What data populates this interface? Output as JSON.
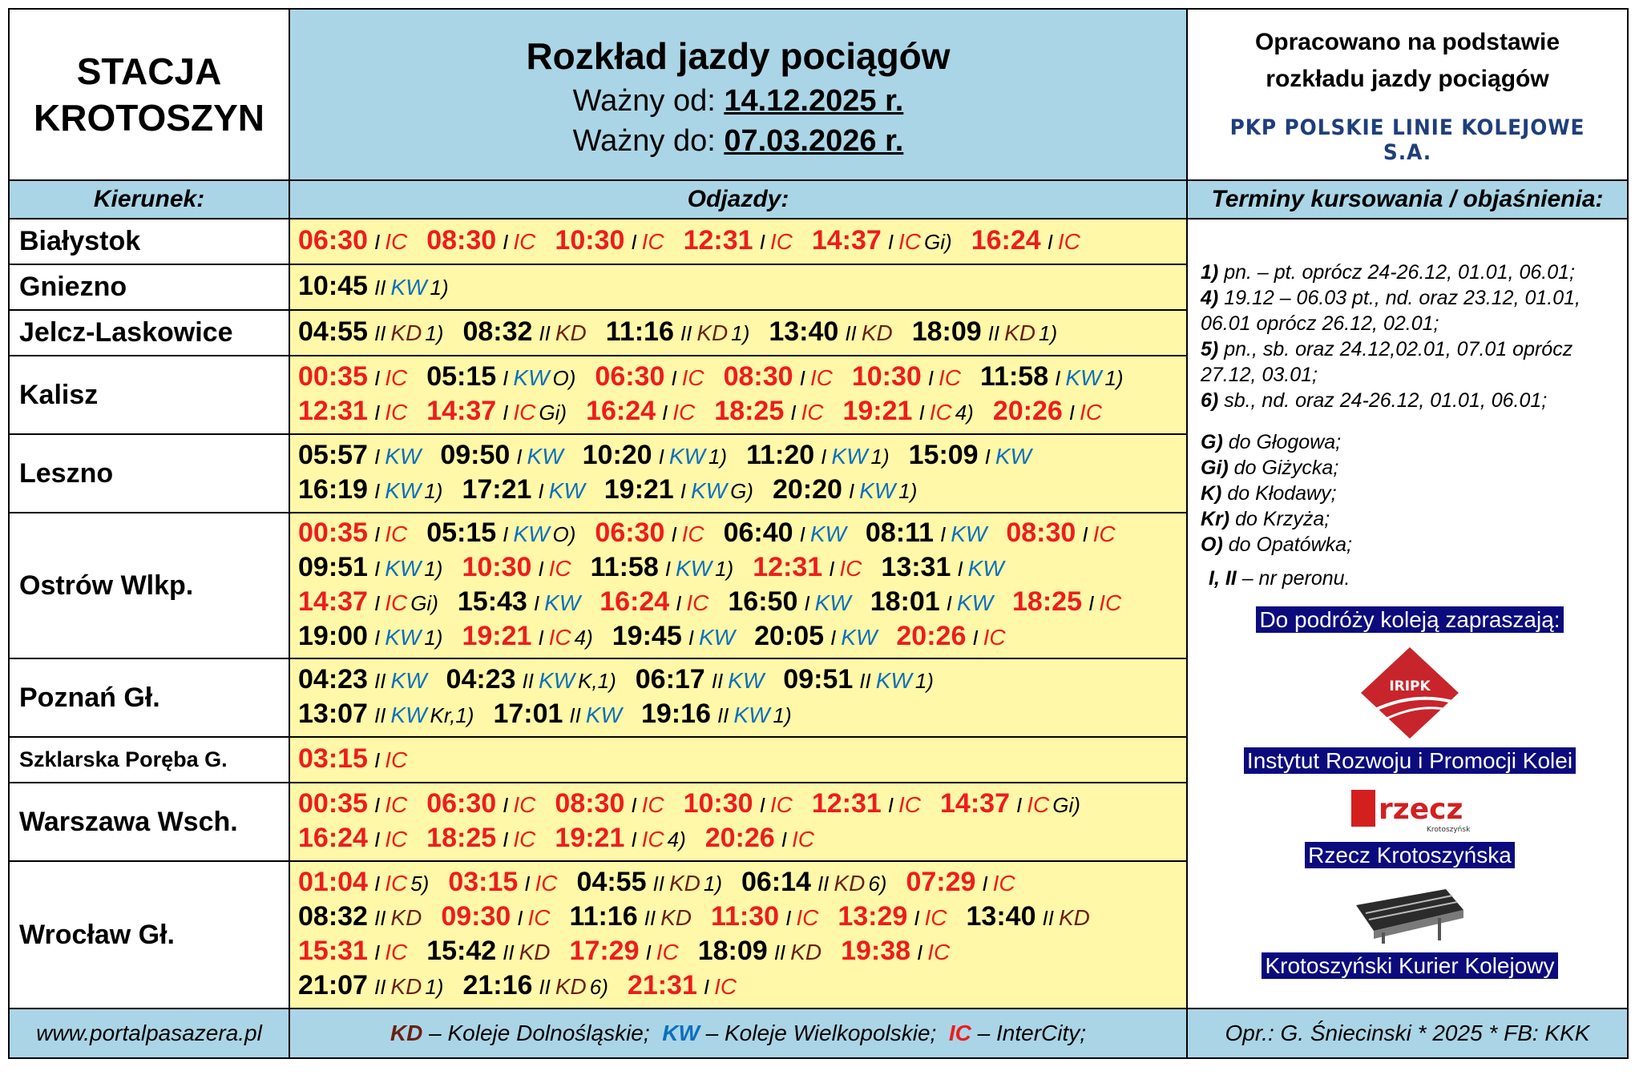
{
  "header": {
    "station": [
      "STACJA",
      "KROTOSZYN"
    ],
    "title": "Rozkład jazdy pociągów",
    "valid_from_label": "Ważny od:",
    "valid_from": "14.12.2025 r.",
    "valid_to_label": "Ważny do:",
    "valid_to": "07.03.2026 r.",
    "source_line1": "Opracowano na podstawie",
    "source_line2": "rozkładu jazdy pociągów",
    "source_org": "PKP POLSKIE LINIE KOLEJOWE S.A."
  },
  "columns": {
    "direction": "Kierunek:",
    "departures": "Odjazdy:",
    "notes": "Terminy kursowania / objaśnienia:"
  },
  "rows": [
    {
      "direction": "Białystok",
      "lines": [
        [
          {
            "t": "06:30",
            "p": "I",
            "c": "IC",
            "n": ""
          },
          {
            "t": "08:30",
            "p": "I",
            "c": "IC",
            "n": ""
          },
          {
            "t": "10:30",
            "p": "I",
            "c": "IC",
            "n": ""
          },
          {
            "t": "12:31",
            "p": "I",
            "c": "IC",
            "n": ""
          },
          {
            "t": "14:37",
            "p": "I",
            "c": "IC",
            "n": "Gi)"
          },
          {
            "t": "16:24",
            "p": "I",
            "c": "IC",
            "n": ""
          }
        ]
      ]
    },
    {
      "direction": "Gniezno",
      "lines": [
        [
          {
            "t": "10:45",
            "p": "II",
            "c": "KW",
            "n": "1)"
          }
        ]
      ]
    },
    {
      "direction": "Jelcz-Laskowice",
      "lines": [
        [
          {
            "t": "04:55",
            "p": "II",
            "c": "KD",
            "n": "1)"
          },
          {
            "t": "08:32",
            "p": "II",
            "c": "KD",
            "n": ""
          },
          {
            "t": "11:16",
            "p": "II",
            "c": "KD",
            "n": "1)"
          },
          {
            "t": "13:40",
            "p": "II",
            "c": "KD",
            "n": ""
          },
          {
            "t": "18:09",
            "p": "II",
            "c": "KD",
            "n": "1)"
          }
        ]
      ]
    },
    {
      "direction": "Kalisz",
      "lines": [
        [
          {
            "t": "00:35",
            "p": "I",
            "c": "IC",
            "n": ""
          },
          {
            "t": "05:15",
            "p": "I",
            "c": "KW",
            "n": "O)"
          },
          {
            "t": "06:30",
            "p": "I",
            "c": "IC",
            "n": ""
          },
          {
            "t": "08:30",
            "p": "I",
            "c": "IC",
            "n": ""
          },
          {
            "t": "10:30",
            "p": "I",
            "c": "IC",
            "n": ""
          },
          {
            "t": "11:58",
            "p": "I",
            "c": "KW",
            "n": "1)"
          }
        ],
        [
          {
            "t": "12:31",
            "p": "I",
            "c": "IC",
            "n": ""
          },
          {
            "t": "14:37",
            "p": "I",
            "c": "IC",
            "n": "Gi)"
          },
          {
            "t": "16:24",
            "p": "I",
            "c": "IC",
            "n": ""
          },
          {
            "t": "18:25",
            "p": "I",
            "c": "IC",
            "n": ""
          },
          {
            "t": "19:21",
            "p": "I",
            "c": "IC",
            "n": "4)"
          },
          {
            "t": "20:26",
            "p": "I",
            "c": "IC",
            "n": ""
          }
        ]
      ]
    },
    {
      "direction": "Leszno",
      "lines": [
        [
          {
            "t": "05:57",
            "p": "I",
            "c": "KW",
            "n": ""
          },
          {
            "t": "09:50",
            "p": "I",
            "c": "KW",
            "n": ""
          },
          {
            "t": "10:20",
            "p": "I",
            "c": "KW",
            "n": "1)"
          },
          {
            "t": "11:20",
            "p": "I",
            "c": "KW",
            "n": "1)"
          },
          {
            "t": "15:09",
            "p": "I",
            "c": "KW",
            "n": ""
          }
        ],
        [
          {
            "t": "16:19",
            "p": "I",
            "c": "KW",
            "n": "1)"
          },
          {
            "t": "17:21",
            "p": "I",
            "c": "KW",
            "n": ""
          },
          {
            "t": "19:21",
            "p": "I",
            "c": "KW",
            "n": "G)"
          },
          {
            "t": "20:20",
            "p": "I",
            "c": "KW",
            "n": "1)"
          }
        ]
      ]
    },
    {
      "direction": "Ostrów Wlkp.",
      "lines": [
        [
          {
            "t": "00:35",
            "p": "I",
            "c": "IC",
            "n": ""
          },
          {
            "t": "05:15",
            "p": "I",
            "c": "KW",
            "n": "O)"
          },
          {
            "t": "06:30",
            "p": "I",
            "c": "IC",
            "n": ""
          },
          {
            "t": "06:40",
            "p": "I",
            "c": "KW",
            "n": ""
          },
          {
            "t": "08:11",
            "p": "I",
            "c": "KW",
            "n": ""
          },
          {
            "t": "08:30",
            "p": "I",
            "c": "IC",
            "n": ""
          }
        ],
        [
          {
            "t": "09:51",
            "p": "I",
            "c": "KW",
            "n": "1)"
          },
          {
            "t": "10:30",
            "p": "I",
            "c": "IC",
            "n": ""
          },
          {
            "t": "11:58",
            "p": "I",
            "c": "KW",
            "n": "1)"
          },
          {
            "t": "12:31",
            "p": "I",
            "c": "IC",
            "n": ""
          },
          {
            "t": "13:31",
            "p": "I",
            "c": "KW",
            "n": ""
          }
        ],
        [
          {
            "t": "14:37",
            "p": "I",
            "c": "IC",
            "n": "Gi)"
          },
          {
            "t": "15:43",
            "p": "I",
            "c": "KW",
            "n": ""
          },
          {
            "t": "16:24",
            "p": "I",
            "c": "IC",
            "n": ""
          },
          {
            "t": "16:50",
            "p": "I",
            "c": "KW",
            "n": ""
          },
          {
            "t": "18:01",
            "p": "I",
            "c": "KW",
            "n": ""
          },
          {
            "t": "18:25",
            "p": "I",
            "c": "IC",
            "n": ""
          }
        ],
        [
          {
            "t": "19:00",
            "p": "I",
            "c": "KW",
            "n": "1)"
          },
          {
            "t": "19:21",
            "p": "I",
            "c": "IC",
            "n": "4)"
          },
          {
            "t": "19:45",
            "p": "I",
            "c": "KW",
            "n": ""
          },
          {
            "t": "20:05",
            "p": "I",
            "c": "KW",
            "n": ""
          },
          {
            "t": "20:26",
            "p": "I",
            "c": "IC",
            "n": ""
          }
        ]
      ]
    },
    {
      "direction": "Poznań Gł.",
      "lines": [
        [
          {
            "t": "04:23",
            "p": "II",
            "c": "KW",
            "n": ""
          },
          {
            "t": "04:23",
            "p": "II",
            "c": "KW",
            "n": "K,1)"
          },
          {
            "t": "06:17",
            "p": "II",
            "c": "KW",
            "n": ""
          },
          {
            "t": "09:51",
            "p": "II",
            "c": "KW",
            "n": "1)"
          }
        ],
        [
          {
            "t": "13:07",
            "p": "II",
            "c": "KW",
            "n": "Kr,1)"
          },
          {
            "t": "17:01",
            "p": "II",
            "c": "KW",
            "n": ""
          },
          {
            "t": "19:16",
            "p": "II",
            "c": "KW",
            "n": "1)"
          }
        ]
      ]
    },
    {
      "direction": "Szklarska Poręba G.",
      "small": true,
      "lines": [
        [
          {
            "t": "03:15",
            "p": "I",
            "c": "IC",
            "n": ""
          }
        ]
      ]
    },
    {
      "direction": "Warszawa Wsch.",
      "lines": [
        [
          {
            "t": "00:35",
            "p": "I",
            "c": "IC",
            "n": ""
          },
          {
            "t": "06:30",
            "p": "I",
            "c": "IC",
            "n": ""
          },
          {
            "t": "08:30",
            "p": "I",
            "c": "IC",
            "n": ""
          },
          {
            "t": "10:30",
            "p": "I",
            "c": "IC",
            "n": ""
          },
          {
            "t": "12:31",
            "p": "I",
            "c": "IC",
            "n": ""
          },
          {
            "t": "14:37",
            "p": "I",
            "c": "IC",
            "n": "Gi)"
          }
        ],
        [
          {
            "t": "16:24",
            "p": "I",
            "c": "IC",
            "n": ""
          },
          {
            "t": "18:25",
            "p": "I",
            "c": "IC",
            "n": ""
          },
          {
            "t": "19:21",
            "p": "I",
            "c": "IC",
            "n": "4)"
          },
          {
            "t": "20:26",
            "p": "I",
            "c": "IC",
            "n": ""
          }
        ]
      ]
    },
    {
      "direction": "Wrocław Gł.",
      "lines": [
        [
          {
            "t": "01:04",
            "p": "I",
            "c": "IC",
            "n": "5)"
          },
          {
            "t": "03:15",
            "p": "I",
            "c": "IC",
            "n": ""
          },
          {
            "t": "04:55",
            "p": "II",
            "c": "KD",
            "n": "1)"
          },
          {
            "t": "06:14",
            "p": "II",
            "c": "KD",
            "n": "6)"
          },
          {
            "t": "07:29",
            "p": "I",
            "c": "IC",
            "n": ""
          }
        ],
        [
          {
            "t": "08:32",
            "p": "II",
            "c": "KD",
            "n": ""
          },
          {
            "t": "09:30",
            "p": "I",
            "c": "IC",
            "n": ""
          },
          {
            "t": "11:16",
            "p": "II",
            "c": "KD",
            "n": ""
          },
          {
            "t": "11:30",
            "p": "I",
            "c": "IC",
            "n": ""
          },
          {
            "t": "13:29",
            "p": "I",
            "c": "IC",
            "n": ""
          },
          {
            "t": "13:40",
            "p": "II",
            "c": "KD",
            "n": ""
          }
        ],
        [
          {
            "t": "15:31",
            "p": "I",
            "c": "IC",
            "n": ""
          },
          {
            "t": "15:42",
            "p": "II",
            "c": "KD",
            "n": ""
          },
          {
            "t": "17:29",
            "p": "I",
            "c": "IC",
            "n": ""
          },
          {
            "t": "18:09",
            "p": "II",
            "c": "KD",
            "n": ""
          },
          {
            "t": "19:38",
            "p": "I",
            "c": "IC",
            "n": ""
          }
        ],
        [
          {
            "t": "21:07",
            "p": "II",
            "c": "KD",
            "n": "1)"
          },
          {
            "t": "21:16",
            "p": "II",
            "c": "KD",
            "n": "6)"
          },
          {
            "t": "21:31",
            "p": "I",
            "c": "IC",
            "n": ""
          }
        ]
      ]
    }
  ],
  "notes": {
    "terms": [
      {
        "k": "1)",
        "v": "pn. – pt. oprócz 24-26.12, 01.01, 06.01;"
      },
      {
        "k": "4)",
        "v": "19.12 – 06.03 pt., nd. oraz 23.12, 01.01, 06.01 oprócz 26.12, 02.01;"
      },
      {
        "k": "5)",
        "v": "pn., sb. oraz 24.12,02.01, 07.01 oprócz 27.12, 03.01;"
      },
      {
        "k": "6)",
        "v": "sb., nd. oraz 24-26.12, 01.01, 06.01;"
      }
    ],
    "destinations": [
      {
        "k": "G)",
        "v": "do Głogowa;"
      },
      {
        "k": "Gi)",
        "v": "do Giżycka;"
      },
      {
        "k": "K)",
        "v": "do Kłodawy;"
      },
      {
        "k": "Kr)",
        "v": "do Krzyża;"
      },
      {
        "k": "O)",
        "v": "do Opatówka;"
      }
    ],
    "platform_key": "I, II",
    "platform_text": "– nr peronu."
  },
  "sponsors": {
    "invite": "Do podróży koleją zapraszają:",
    "iripk_logo_text": "IRIPK",
    "iripk": "Instytut Rozwoju i Promocji Kolei",
    "rzecz_logo_text": "rzecz",
    "rzecz_logo_sub": "Krotoszyńska",
    "rzecz": "Rzecz Krotoszyńska",
    "kurier": "Krotoszyński Kurier Kolejowy"
  },
  "footer": {
    "website": "www.portalpasazera.pl",
    "kd_abbr": "KD",
    "kd_text": "– Koleje Dolnośląskie;",
    "kw_abbr": "KW",
    "kw_text": "– Koleje Wielkopolskie;",
    "ic_abbr": "IC",
    "ic_text": "– InterCity;",
    "credit": "Opr.: G. Śniecinski  * 2025 * FB: KKK"
  },
  "colors": {
    "ic": "#ee1c1c",
    "kw": "#0b6fc0",
    "kd": "#6b1f12",
    "header_bg": "#aad5e6",
    "dep_bg": "#fff8a8",
    "banner_bg": "#0b0b7d"
  }
}
